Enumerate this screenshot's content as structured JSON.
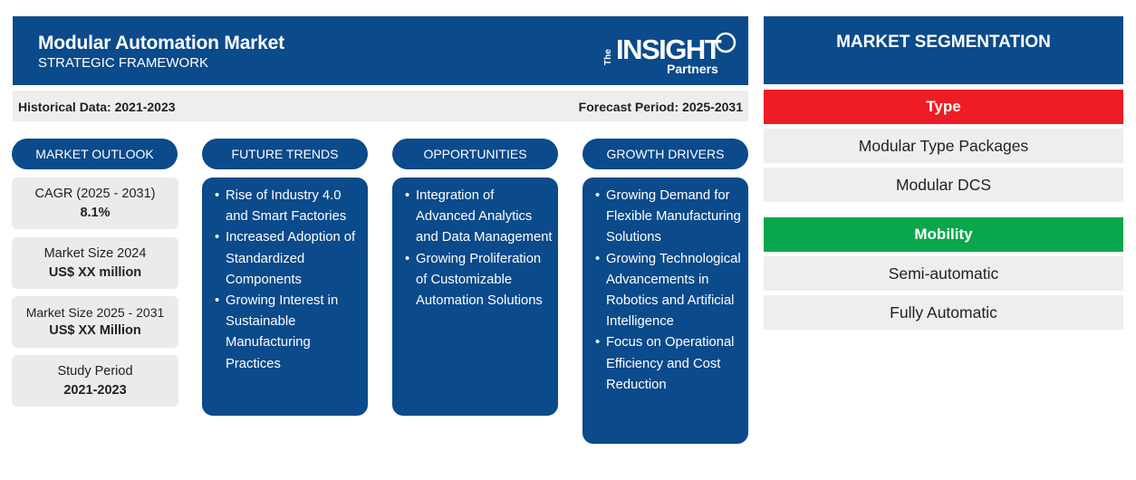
{
  "header": {
    "title": "Modular Automation Market",
    "subtitle": "STRATEGIC FRAMEWORK",
    "logo": {
      "the": "The",
      "insight": "INSIGHT",
      "partners": "Partners"
    }
  },
  "periods": {
    "historical": "Historical Data: 2021-2023",
    "forecast": "Forecast Period: 2025-2031"
  },
  "columns": {
    "outlook": "MARKET OUTLOOK",
    "trends": "FUTURE TRENDS",
    "opportunities": "OPPORTUNITIES",
    "drivers": "GROWTH DRIVERS"
  },
  "outlook": [
    {
      "label": "CAGR (2025 - 2031)",
      "value": "8.1%"
    },
    {
      "label": "Market Size 2024",
      "value": "US$ XX million"
    },
    {
      "label": "Market Size 2025 - 2031",
      "value": "US$ XX Million"
    },
    {
      "label": "Study Period",
      "value": "2021-2023"
    }
  ],
  "trends": [
    "Rise of Industry 4.0 and Smart Factories",
    "Increased Adoption of Standardized Components",
    "Growing Interest in Sustainable Manufacturing Practices"
  ],
  "opportunities": [
    "Integration of Advanced Analytics and Data Management",
    "Growing Proliferation of Customizable Automation Solutions"
  ],
  "drivers": [
    "Growing Demand for Flexible Manufacturing Solutions",
    "Growing Technological Advancements in Robotics and Artificial Intelligence",
    "Focus on Operational Efficiency and Cost Reduction"
  ],
  "segmentation": {
    "title": "MARKET SEGMENTATION",
    "type": {
      "label": "Type",
      "color": "#ee1c25",
      "items": [
        "Modular Type Packages",
        "Modular DCS"
      ]
    },
    "mobility": {
      "label": "Mobility",
      "color": "#0aa64b",
      "items": [
        "Semi-automatic",
        "Fully Automatic"
      ]
    }
  },
  "colors": {
    "navy": "#0b4a8b",
    "light_gray": "#eeeeee"
  }
}
